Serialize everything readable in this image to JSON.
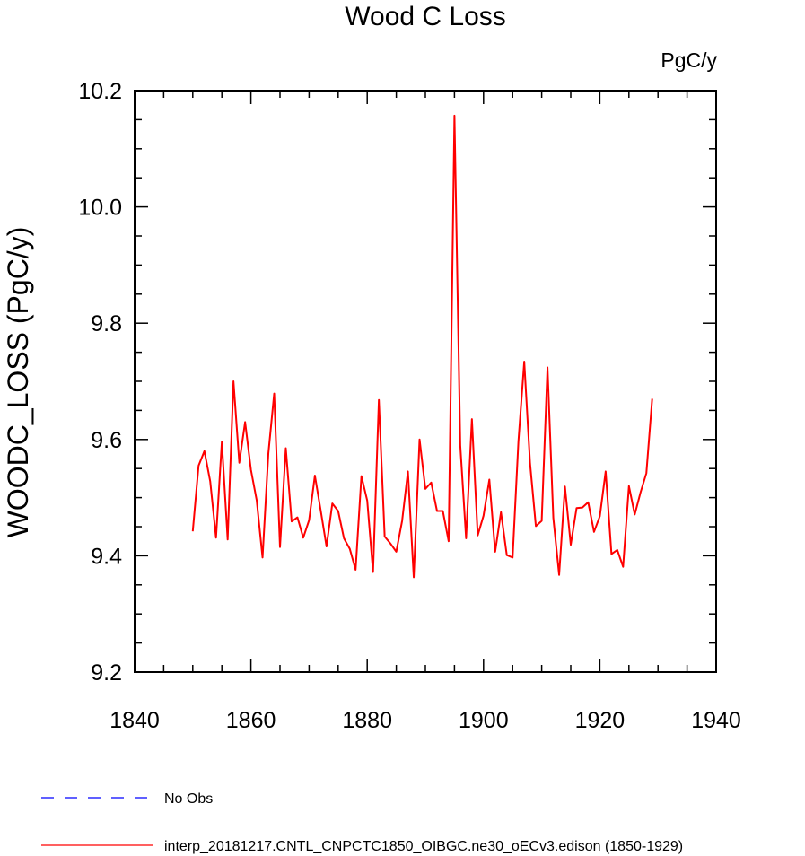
{
  "chart_data": {
    "type": "line",
    "title": "Wood C Loss",
    "units_label": "PgC/y",
    "xlabel": "",
    "ylabel": "WOODC_LOSS  (PgC/y)",
    "xlim": [
      1840,
      1940
    ],
    "ylim": [
      9.2,
      10.2
    ],
    "xticks": [
      "1840",
      "1860",
      "1880",
      "1900",
      "1920",
      "1940"
    ],
    "yticks": [
      "9.2",
      "9.4",
      "9.6",
      "9.8",
      "10.0",
      "10.2"
    ],
    "x": [
      1850,
      1851,
      1852,
      1853,
      1854,
      1855,
      1856,
      1857,
      1858,
      1859,
      1860,
      1861,
      1862,
      1863,
      1864,
      1865,
      1866,
      1867,
      1868,
      1869,
      1870,
      1871,
      1872,
      1873,
      1874,
      1875,
      1876,
      1877,
      1878,
      1879,
      1880,
      1881,
      1882,
      1883,
      1884,
      1885,
      1886,
      1887,
      1888,
      1889,
      1890,
      1891,
      1892,
      1893,
      1894,
      1895,
      1896,
      1897,
      1898,
      1899,
      1900,
      1901,
      1902,
      1903,
      1904,
      1905,
      1906,
      1907,
      1908,
      1909,
      1910,
      1911,
      1912,
      1913,
      1914,
      1915,
      1916,
      1917,
      1918,
      1919,
      1920,
      1921,
      1922,
      1923,
      1924,
      1925,
      1926,
      1927,
      1928,
      1929
    ],
    "series": [
      {
        "name": "interp_20181217.CNTL_CNPCTC1850_OIBGC.ne30_oECv3.edison (1850-1929)",
        "color": "#ff0000",
        "style": "solid",
        "values": [
          9.442,
          9.555,
          9.58,
          9.528,
          9.431,
          9.596,
          9.428,
          9.7,
          9.56,
          9.63,
          9.548,
          9.495,
          9.397,
          9.576,
          9.679,
          9.415,
          9.585,
          9.459,
          9.466,
          9.431,
          9.461,
          9.538,
          9.478,
          9.416,
          9.49,
          9.477,
          9.43,
          9.412,
          9.376,
          9.537,
          9.495,
          9.372,
          9.668,
          9.433,
          9.421,
          9.407,
          9.46,
          9.545,
          9.363,
          9.6,
          9.515,
          9.526,
          9.477,
          9.477,
          9.425,
          10.157,
          9.59,
          9.43,
          9.635,
          9.435,
          9.469,
          9.531,
          9.407,
          9.475,
          9.401,
          9.397,
          9.597,
          9.734,
          9.559,
          9.451,
          9.46,
          9.724,
          9.465,
          9.367,
          9.519,
          9.419,
          9.482,
          9.483,
          9.492,
          9.441,
          9.468,
          9.545,
          9.403,
          9.41,
          9.381,
          9.52,
          9.471,
          9.509,
          9.542,
          9.67
        ]
      }
    ],
    "legend": {
      "placement": "bottom-left",
      "entries": [
        {
          "label": "No Obs",
          "color": "#0000ff",
          "style": "dashed"
        },
        {
          "label": "interp_20181217.CNTL_CNPCTC1850_OIBGC.ne30_oECv3.edison (1850-1929)",
          "color": "#ff0000",
          "style": "solid"
        }
      ]
    },
    "grid": false
  }
}
